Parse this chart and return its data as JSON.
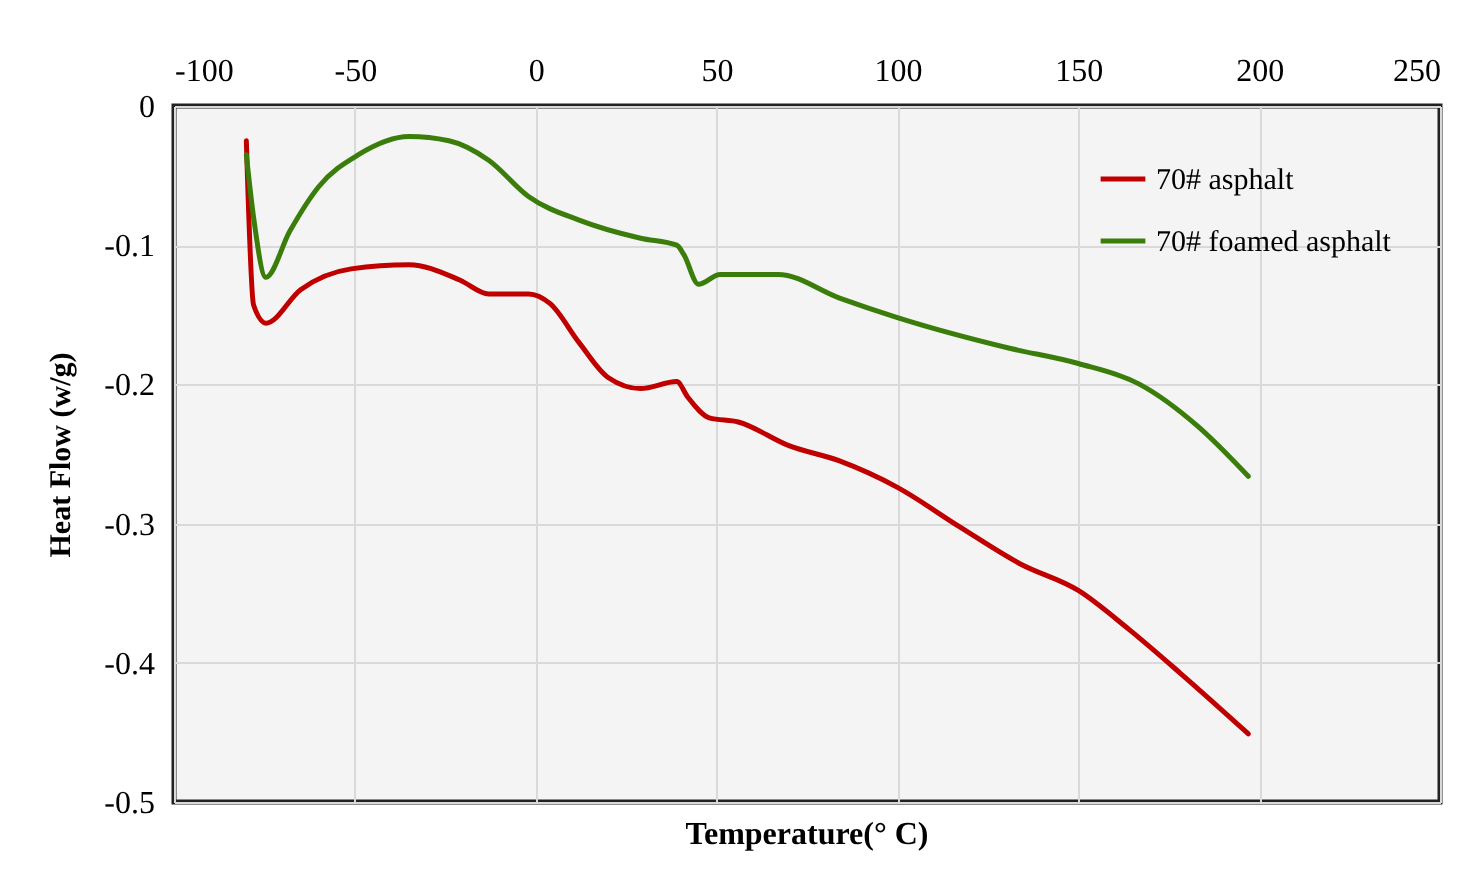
{
  "chart_data": {
    "type": "line",
    "xlabel": "Temperature(°  C)",
    "ylabel": "Heat Flow (w/g)",
    "xlim": [
      -100,
      250
    ],
    "xticks": [
      -100,
      -50,
      0,
      50,
      100,
      150,
      200,
      250
    ],
    "ylim": [
      -0.5,
      0
    ],
    "yticks": [
      -0.5,
      -0.4,
      -0.3,
      -0.2,
      -0.1,
      0
    ],
    "grid": true,
    "legend": "top right",
    "series": [
      {
        "name": "70# asphalt",
        "color": "#c00000",
        "x": [
          -80,
          -78,
          -74.6,
          -65,
          -51,
          -35,
          -21,
          -13,
          -2,
          4,
          12,
          20,
          29,
          39,
          42,
          48,
          56,
          70,
          84,
          100,
          117,
          134,
          150,
          164,
          178,
          197
        ],
        "values": [
          -0.025,
          -0.143,
          -0.156,
          -0.132,
          -0.117,
          -0.114,
          -0.125,
          -0.135,
          -0.135,
          -0.142,
          -0.17,
          -0.195,
          -0.203,
          -0.198,
          -0.209,
          -0.224,
          -0.227,
          -0.244,
          -0.255,
          -0.274,
          -0.302,
          -0.329,
          -0.348,
          -0.376,
          -0.407,
          -0.451
        ]
      },
      {
        "name": "70# foamed asphalt",
        "color": "#3a7d0a",
        "x": [
          -80,
          -78,
          -74.6,
          -68,
          -60,
          -49,
          -35,
          -24,
          -13,
          -2,
          12,
          29,
          39,
          41,
          45,
          51,
          67,
          84,
          100,
          131,
          150,
          167,
          183,
          197
        ],
        "values": [
          -0.035,
          -0.08,
          -0.123,
          -0.09,
          -0.058,
          -0.035,
          -0.022,
          -0.025,
          -0.039,
          -0.065,
          -0.082,
          -0.095,
          -0.1,
          -0.107,
          -0.128,
          -0.121,
          -0.121,
          -0.138,
          -0.152,
          -0.174,
          -0.185,
          -0.2,
          -0.23,
          -0.266
        ]
      }
    ]
  }
}
